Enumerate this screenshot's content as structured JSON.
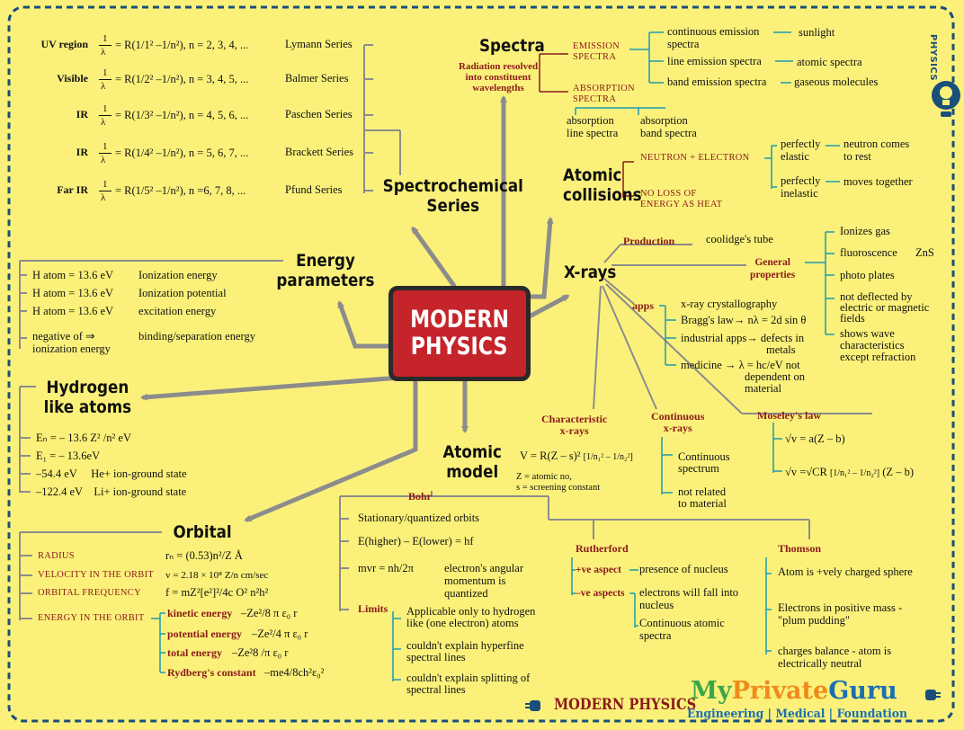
{
  "center": {
    "line1": "MODERN",
    "line2": "PHYSICS"
  },
  "side_label": "PHYSICS",
  "footer": {
    "title": "MODERN PHYSICS",
    "brand_my": "My",
    "brand_private": "Private",
    "brand_guru": "Guru",
    "tagline": "Engineering | Medical | Foundation"
  },
  "spectrochemical": {
    "heading_1": "Spectrochemical",
    "heading_2": "Series",
    "rows": [
      {
        "region": "UV region",
        "formula": "= R(1/1² –1/n²), n = 2, 3, 4, ...",
        "series": "Lymann Series"
      },
      {
        "region": "Visible",
        "formula": "= R(1/2² –1/n²), n = 3, 4, 5, ...",
        "series": "Balmer Series"
      },
      {
        "region": "IR",
        "formula": "= R(1/3² –1/n²), n = 4, 5, 6, ...",
        "series": "Paschen Series"
      },
      {
        "region": "IR",
        "formula": "= R(1/4² –1/n²), n = 5, 6, 7, ...",
        "series": "Brackett Series"
      },
      {
        "region": "Far IR",
        "formula": "= R(1/5² –1/n²), n =6, 7, 8, ...",
        "series": "Pfund Series"
      }
    ],
    "frac_num": "1",
    "frac_den": "λ"
  },
  "spectra": {
    "heading": "Spectra",
    "sub_1": "Radiation resolved",
    "sub_2": "into constituent",
    "sub_3": "wavelengths",
    "emission_1": "EMISSION",
    "emission_2": "SPECTRA",
    "continuous_1": "continuous emission",
    "continuous_2": "spectra",
    "sunlight": "sunlight",
    "line_emission": "line emission spectra",
    "atomic_spectra": "atomic spectra",
    "band_emission": "band emission spectra",
    "gaseous": "gaseous molecules",
    "absorption_1": "ABSORPTION",
    "absorption_2": "SPECTRA",
    "abs_line_1": "absorption",
    "abs_line_2": "line spectra",
    "abs_band_1": "absorption",
    "abs_band_2": "band spectra"
  },
  "collisions": {
    "heading_1": "Atomic",
    "heading_2": "collisions",
    "neutron": "NEUTRON + ELECTRON",
    "no_loss_1": "NO LOSS OF",
    "no_loss_2": "ENERGY AS HEAT",
    "elastic_1": "perfectly",
    "elastic_2": "elastic",
    "elastic_note_1": "neutron comes",
    "elastic_note_2": "to rest",
    "inelastic_1": "perfectly",
    "inelastic_2": "inelastic",
    "inelastic_note": "moves together"
  },
  "xrays": {
    "heading": "X-rays",
    "production": "Production",
    "coolidge": "coolidge's tube",
    "general_1": "General",
    "general_2": "properties",
    "props": [
      "Ionizes gas",
      "fluoroscence",
      "ZnS",
      "photo plates",
      "not deflected by",
      "electric or  magnetic",
      "fields",
      "shows wave",
      "characteristics",
      "except refraction"
    ],
    "apps": "apps",
    "app_items": [
      "x-ray crystallography",
      "Bragg's law→ nλ = 2d sin θ",
      "industrial apps→ defects in",
      "metals",
      "medicine → λ = hc/eV not",
      "dependent on",
      "material"
    ],
    "characteristic_1": "Characteristic",
    "characteristic_2": "x-rays",
    "char_formula": "V = R(Z – s)²",
    "char_note_1": "Z = atomic no,",
    "char_note_2": "s = screening constant",
    "continuous_1": "Continuous",
    "continuous_2": "x-rays",
    "cont_items": [
      "Continuous",
      "spectrum",
      "not related",
      "to material"
    ],
    "moseley": "Moseley's law",
    "moseley_1": "√v = a(Z – b)",
    "moseley_2": "√v =√CR",
    "moseley_3": "(Z – b)"
  },
  "energy": {
    "heading_1": "Energy",
    "heading_2": "parameters",
    "rows": [
      {
        "left": "H atom = 13.6 eV",
        "right": "Ionization energy"
      },
      {
        "left": "H atom = 13.6 eV",
        "right": "Ionization potential"
      },
      {
        "left": "H atom = 13.6 eV",
        "right": "excitation energy"
      }
    ],
    "neg_1": "negative of  ⇒",
    "neg_2": "ionization energy",
    "binding": "binding/separation energy"
  },
  "hydrogen": {
    "heading_1": "Hydrogen",
    "heading_2": "like atoms",
    "rows": [
      "Eₙ = – 13.6 Z² /n² eV",
      "E₁ = – 13.6eV",
      "–54.4 eV     He+ ion-ground state",
      "–122.4 eV    Li+ ion-ground state"
    ]
  },
  "orbital": {
    "heading": "Orbital",
    "radius_label": "RADIUS",
    "radius": "rₙ = (0.53)n²/Z  Å",
    "velocity_label": "VELOCITY IN THE ORBIT",
    "velocity": "v = 2.18 × 10⁸ Z/n cm/sec",
    "frequency_label": "ORBITAL FREQUENCY",
    "frequency": "f = mZ²[e²]²/4c O² n²h²",
    "energy_label": "ENERGY IN THE ORBIT",
    "ke_label": "kinetic energy",
    "ke": "–Ze²/8 π ε₀ r",
    "pe_label": "potential energy",
    "pe": "–Ze²/4 π ε₀ r",
    "te_label": "total energy",
    "te": "–Ze²8 /π ε₀ r",
    "ry_label": "Rydberg's constant",
    "ry": "–me4/8ch²ε₀²"
  },
  "atomic_model": {
    "heading_1": "Atomic",
    "heading_2": "model",
    "bohr": "Bohr",
    "bohr_items": [
      "Stationary/quantized orbits",
      "E(higher) – E(lower) = hf",
      "mvr = nh/2π"
    ],
    "angular_1": "electron's angular",
    "angular_2": "momentum is",
    "angular_3": "quantized",
    "limits": "Limits",
    "limit_items": [
      "Applicable only to hydrogen",
      "like (one electron) atoms",
      "couldn't explain hyperfine",
      "spectral lines",
      "couldn't explain splitting of",
      "spectral lines"
    ],
    "rutherford": "Rutherford",
    "pos_aspect": "+ve aspect",
    "pos_text": "presence of nucleus",
    "neg_aspect": "–ve aspects",
    "neg_1": "electrons will fall into",
    "neg_2": "nucleus",
    "neg_3": "Continuous atomic",
    "neg_4": "spectra",
    "thomson": "Thomson",
    "thomson_1": "Atom is +vely charged sphere",
    "thomson_2": "Electrons in positive mass -",
    "thomson_3": "\"plum pudding\"",
    "thomson_4": "charges balance - atom is",
    "thomson_5": "electrically neutral"
  },
  "colors": {
    "background": "#fbf17a",
    "center": "#c4242a",
    "arrow": "#8c8c8c",
    "accent_red": "#8b1a1a",
    "teal": "#1d9bb0",
    "border": "#1a4f7a",
    "brand_green": "#3aa64a",
    "brand_orange": "#f08a1c",
    "brand_blue": "#1a6fb0"
  }
}
